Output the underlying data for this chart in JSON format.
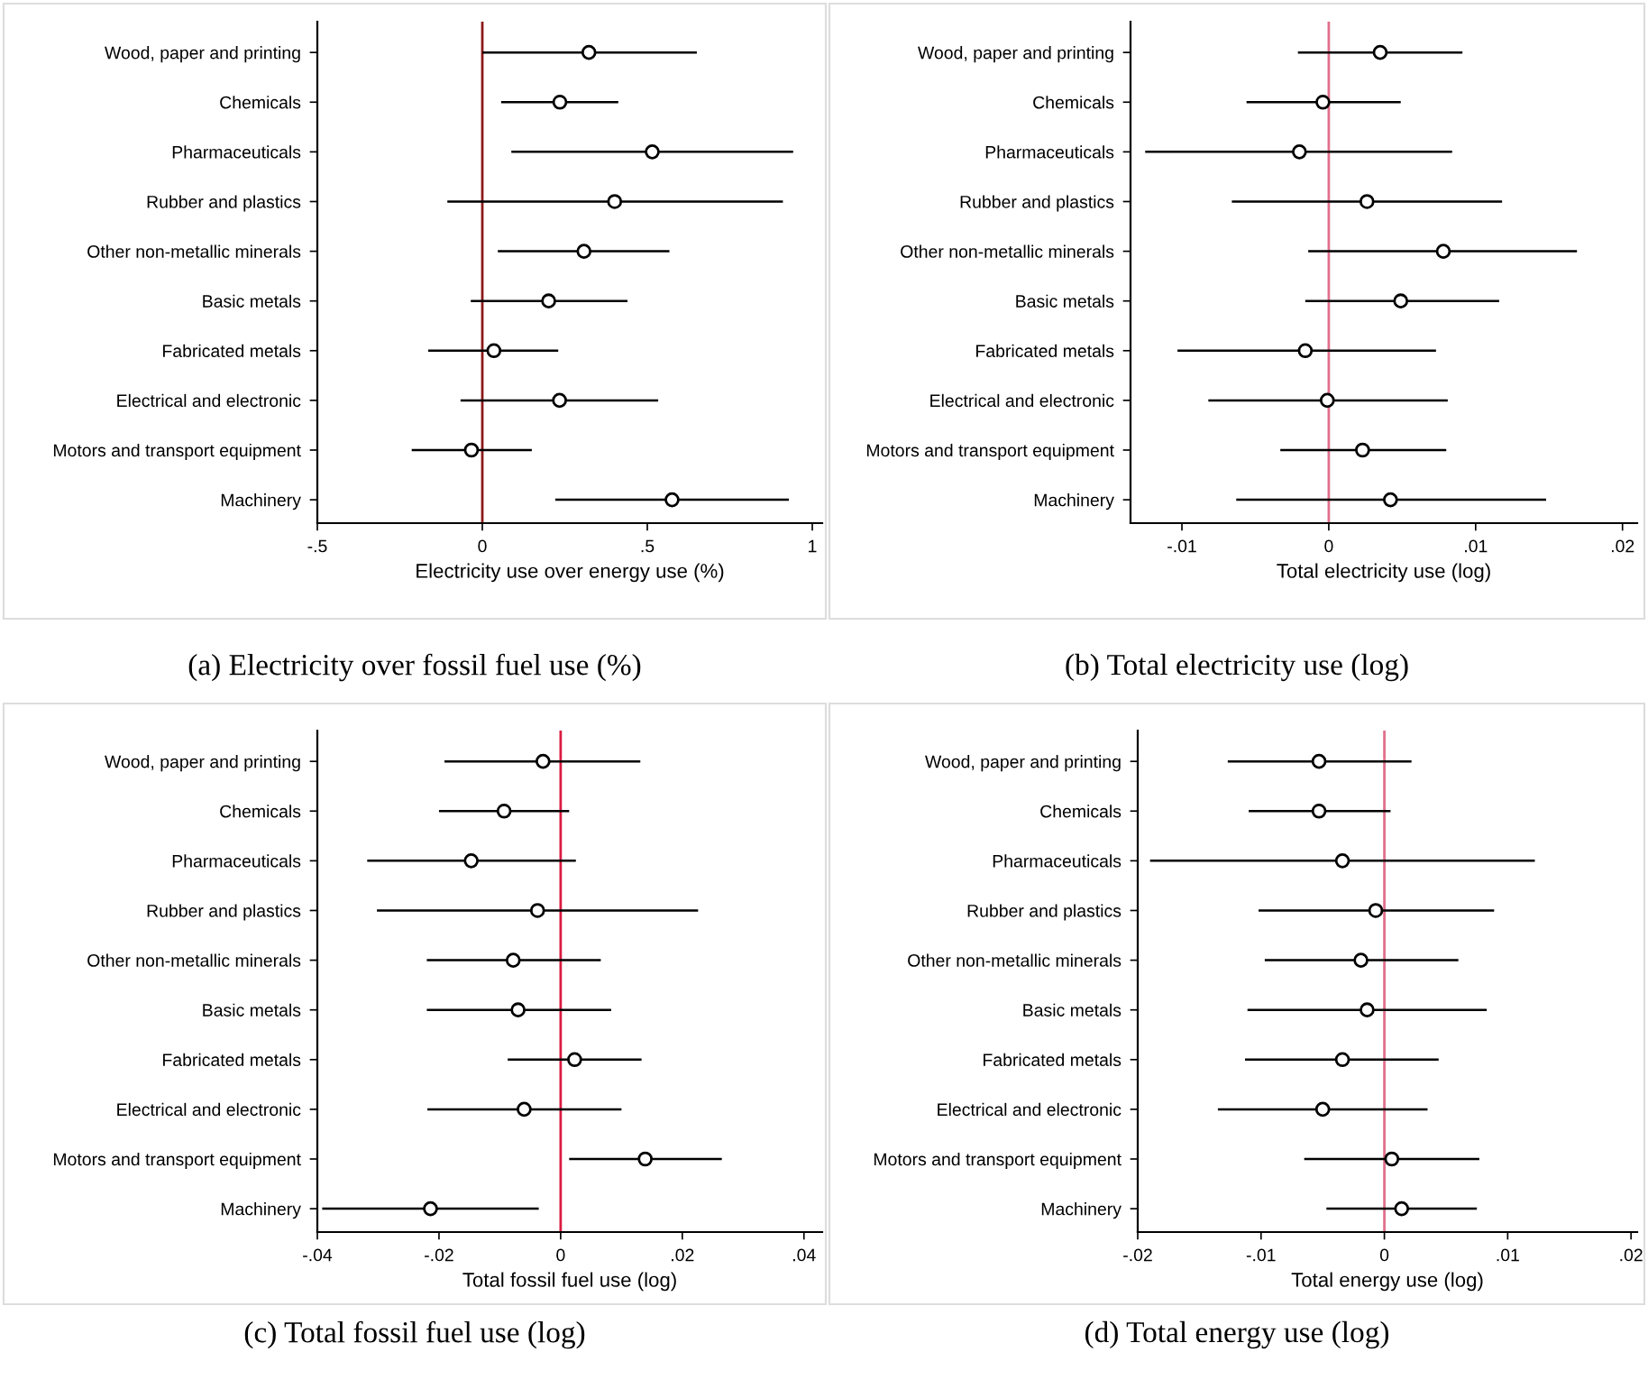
{
  "chart_data": [
    {
      "type": "scatter",
      "orientation": "horizontal",
      "title": "(a) Electricity over fossil fuel use (%)",
      "xlabel": "Electricity use over energy use (%)",
      "categories": [
        "Wood, paper and printing",
        "Chemicals",
        "Pharmaceuticals",
        "Rubber and plastics",
        "Other non-metallic minerals",
        "Basic metals",
        "Fabricated metals",
        "Electrical and electronic",
        "Motors and transport equipment",
        "Machinery"
      ],
      "values": [
        0.323,
        0.235,
        0.515,
        0.401,
        0.308,
        0.201,
        0.035,
        0.234,
        -0.033,
        0.575
      ],
      "errors": [
        [
          0.0,
          0.65
        ],
        [
          0.057,
          0.412
        ],
        [
          0.088,
          0.942
        ],
        [
          -0.106,
          0.911
        ],
        [
          0.047,
          0.567
        ],
        [
          -0.035,
          0.44
        ],
        [
          -0.164,
          0.23
        ],
        [
          -0.066,
          0.533
        ],
        [
          -0.214,
          0.15
        ],
        [
          0.221,
          0.929
        ]
      ],
      "color": "#000000",
      "marker": "circle",
      "xlim": [
        -0.5,
        1.03
      ],
      "xticks": [
        {
          "value": -0.5,
          "label": "-.5"
        },
        0,
        {
          "value": 0.5,
          "label": ".5"
        },
        1
      ],
      "ref_lines": [
        {
          "axis": "x",
          "value": 0,
          "color": "#8b1a1a"
        }
      ]
    },
    {
      "type": "scatter",
      "orientation": "horizontal",
      "title": "(b) Total electricity use (log)",
      "xlabel": "Total electricity use (log)",
      "categories": [
        "Wood, paper and printing",
        "Chemicals",
        "Pharmaceuticals",
        "Rubber and plastics",
        "Other non-metallic minerals",
        "Basic metals",
        "Fabricated metals",
        "Electrical and electronic",
        "Motors and transport equipment",
        "Machinery"
      ],
      "values": [
        0.0035,
        -0.0004,
        -0.002,
        0.0026,
        0.0078,
        0.0049,
        -0.0016,
        -0.0001,
        0.0023,
        0.0042
      ],
      "errors": [
        [
          -0.0021,
          0.0091
        ],
        [
          -0.0056,
          0.0049
        ],
        [
          -0.0125,
          0.0084
        ],
        [
          -0.0066,
          0.0118
        ],
        [
          -0.0014,
          0.0169
        ],
        [
          -0.0016,
          0.0116
        ],
        [
          -0.0103,
          0.0073
        ],
        [
          -0.0082,
          0.0081
        ],
        [
          -0.0033,
          0.008
        ],
        [
          -0.0063,
          0.0148
        ]
      ],
      "color": "#000000",
      "marker": "circle",
      "xlim": [
        -0.0135,
        0.021
      ],
      "xticks": [
        {
          "value": -0.01,
          "label": "-.01"
        },
        0,
        {
          "value": 0.01,
          "label": ".01"
        },
        {
          "value": 0.02,
          "label": ".02"
        }
      ],
      "ref_lines": [
        {
          "axis": "x",
          "value": 0,
          "color": "#e0708c"
        }
      ]
    },
    {
      "type": "scatter",
      "orientation": "horizontal",
      "title": "(c) Total fossil fuel use (log)",
      "xlabel": "Total fossil fuel use (log)",
      "categories": [
        "Wood, paper and printing",
        "Chemicals",
        "Pharmaceuticals",
        "Rubber and plastics",
        "Other non-metallic minerals",
        "Basic metals",
        "Fabricated metals",
        "Electrical and electronic",
        "Motors and transport equipment",
        "Machinery"
      ],
      "values": [
        -0.0029,
        -0.0093,
        -0.0147,
        -0.0038,
        -0.0078,
        -0.007,
        0.0023,
        -0.006,
        0.0139,
        -0.0214
      ],
      "errors": [
        [
          -0.0191,
          0.0131
        ],
        [
          -0.02,
          0.0014
        ],
        [
          -0.0318,
          0.0025
        ],
        [
          -0.0302,
          0.0226
        ],
        [
          -0.022,
          0.0066
        ],
        [
          -0.022,
          0.0083
        ],
        [
          -0.0087,
          0.0133
        ],
        [
          -0.0219,
          0.01
        ],
        [
          0.0014,
          0.0265
        ],
        [
          -0.0392,
          -0.0036
        ]
      ],
      "color": "#000000",
      "marker": "circle",
      "xlim": [
        -0.04,
        0.043
      ],
      "xticks": [
        {
          "value": -0.04,
          "label": "-.04"
        },
        {
          "value": -0.02,
          "label": "-.02"
        },
        0,
        {
          "value": 0.02,
          "label": ".02"
        },
        {
          "value": 0.04,
          "label": ".04"
        }
      ],
      "ref_lines": [
        {
          "axis": "x",
          "value": 0,
          "color": "#d81b40"
        }
      ]
    },
    {
      "type": "scatter",
      "orientation": "horizontal",
      "title": "(d) Total energy use (log)",
      "xlabel": "Total energy use (log)",
      "categories": [
        "Wood, paper and printing",
        "Chemicals",
        "Pharmaceuticals",
        "Rubber and plastics",
        "Other non-metallic minerals",
        "Basic metals",
        "Fabricated metals",
        "Electrical and electronic",
        "Motors and transport equipment",
        "Machinery"
      ],
      "values": [
        -0.0053,
        -0.0053,
        -0.0034,
        -0.0007,
        -0.0019,
        -0.0014,
        -0.0034,
        -0.005,
        0.0006,
        0.0014
      ],
      "errors": [
        [
          -0.0127,
          0.0022
        ],
        [
          -0.011,
          0.0005
        ],
        [
          -0.019,
          0.0122
        ],
        [
          -0.0102,
          0.0089
        ],
        [
          -0.0097,
          0.006
        ],
        [
          -0.0111,
          0.0083
        ],
        [
          -0.0113,
          0.0044
        ],
        [
          -0.0135,
          0.0035
        ],
        [
          -0.0065,
          0.0077
        ],
        [
          -0.0047,
          0.0075
        ]
      ],
      "color": "#000000",
      "marker": "circle",
      "xlim": [
        -0.02,
        0.0205
      ],
      "xticks": [
        {
          "value": -0.02,
          "label": "-.02"
        },
        {
          "value": -0.01,
          "label": "-.01"
        },
        0,
        {
          "value": 0.01,
          "label": ".01"
        },
        {
          "value": 0.02,
          "label": ".02"
        }
      ],
      "ref_lines": [
        {
          "axis": "x",
          "value": 0,
          "color": "#e0708c"
        }
      ]
    }
  ]
}
